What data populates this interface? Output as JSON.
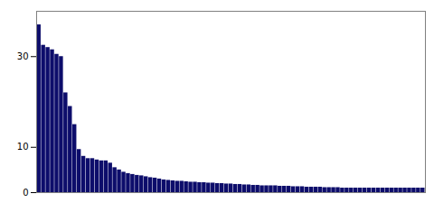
{
  "chart_data": {
    "type": "bar",
    "categories": [
      null,
      null,
      null,
      null,
      null,
      null,
      null,
      null,
      null,
      null,
      null,
      null,
      null,
      null,
      null,
      null,
      null,
      null,
      null,
      null,
      null,
      null,
      null,
      null,
      null,
      null,
      null,
      null,
      null,
      null,
      null,
      null,
      null,
      null,
      null,
      null,
      null,
      null,
      null,
      null,
      null,
      null,
      null,
      null,
      null,
      null,
      null,
      null,
      null,
      null,
      null,
      null,
      null,
      null,
      null,
      null,
      null,
      null,
      null,
      null,
      null,
      null,
      null,
      null,
      null,
      null,
      null,
      null,
      null,
      null,
      null,
      null,
      null,
      null,
      null,
      null,
      null,
      null,
      null,
      null,
      null,
      null,
      null,
      null,
      null,
      null,
      null
    ],
    "values": [
      37.0,
      32.5,
      32.0,
      31.5,
      30.5,
      30.0,
      22.0,
      19.0,
      15.0,
      9.5,
      8.0,
      7.5,
      7.5,
      7.2,
      7.0,
      7.0,
      6.5,
      5.5,
      5.0,
      4.5,
      4.2,
      4.0,
      3.8,
      3.7,
      3.5,
      3.3,
      3.2,
      3.0,
      2.8,
      2.7,
      2.6,
      2.5,
      2.5,
      2.4,
      2.3,
      2.3,
      2.2,
      2.2,
      2.1,
      2.1,
      2.0,
      2.0,
      1.9,
      1.9,
      1.8,
      1.8,
      1.7,
      1.7,
      1.6,
      1.6,
      1.5,
      1.5,
      1.5,
      1.5,
      1.4,
      1.4,
      1.4,
      1.3,
      1.3,
      1.3,
      1.2,
      1.2,
      1.2,
      1.2,
      1.1,
      1.1,
      1.1,
      1.1,
      1.0,
      1.0,
      1.0,
      1.0,
      1.0,
      1.0,
      1.0,
      1.0,
      1.0,
      1.0,
      1.0,
      1.0,
      1.0,
      1.0,
      1.0,
      1.0,
      1.0,
      1.0,
      1.0
    ],
    "color": "#0d0d6b",
    "ylim": [
      0,
      40
    ],
    "yticks": [
      0,
      10,
      30
    ],
    "grid": false,
    "tick_labels": "y"
  }
}
